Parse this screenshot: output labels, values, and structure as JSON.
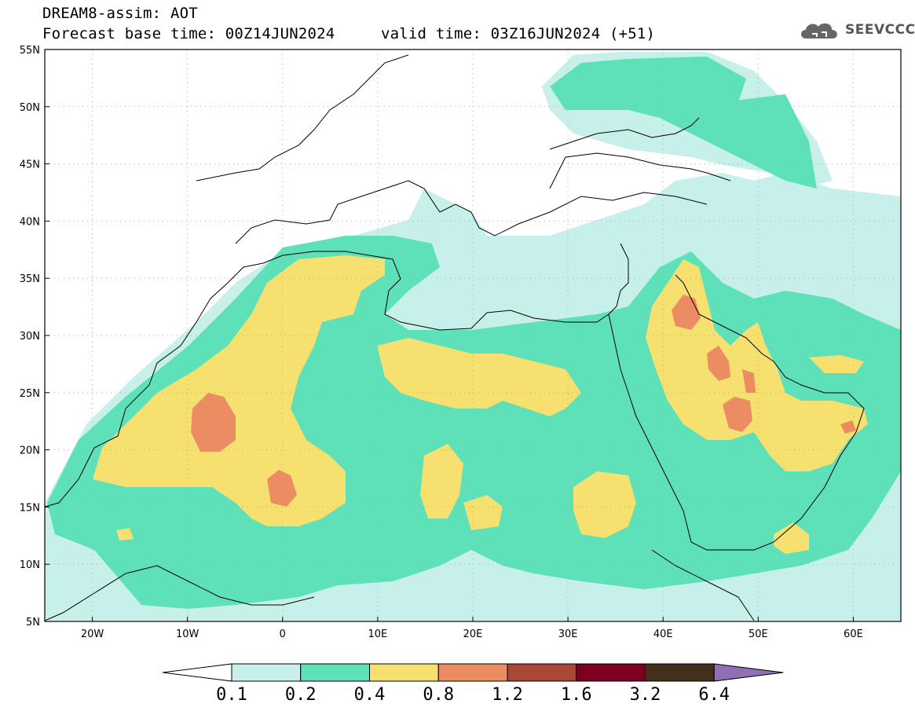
{
  "header": {
    "line1": "DREAM8-assim: AOT",
    "base_time": "Forecast base time: 00Z14JUN2024",
    "valid_time": "valid time: 03Z16JUN2024 (+51)"
  },
  "logo": {
    "text": "SEEVCCC",
    "icon": "cloud-icon"
  },
  "map": {
    "lat_range": [
      5,
      55
    ],
    "lon_range": [
      -25,
      65
    ],
    "grid": "dotted",
    "lat_ticks": [
      "55N",
      "50N",
      "45N",
      "40N",
      "35N",
      "30N",
      "25N",
      "20N",
      "15N",
      "10N",
      "5N"
    ],
    "lon_ticks": [
      "20W",
      "10W",
      "0",
      "10E",
      "20E",
      "30E",
      "40E",
      "50E",
      "60E"
    ]
  },
  "colorbar": {
    "labels": [
      "0.1",
      "0.2",
      "0.4",
      "0.8",
      "1.2",
      "1.6",
      "3.2",
      "6.4"
    ],
    "colors": [
      "#ffffff",
      "#c8f0ea",
      "#5ee0b8",
      "#f5e070",
      "#ec8c62",
      "#a84836",
      "#7d0022",
      "#42301c",
      "#9070b4"
    ]
  }
}
